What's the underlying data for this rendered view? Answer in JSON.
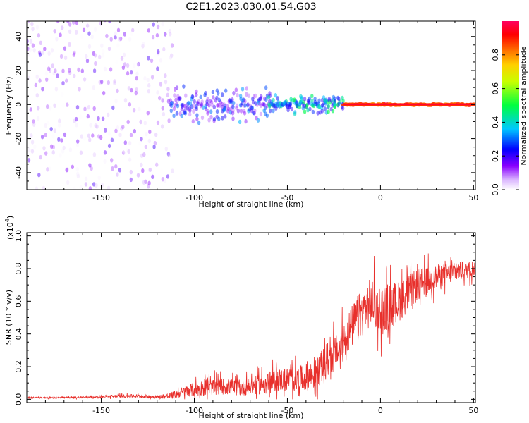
{
  "title": "C2E1.2023.030.01.54.G03",
  "colors": {
    "snr_line": "#e8302c",
    "frame": "#000000",
    "background": "#ffffff"
  },
  "chart_data": [
    {
      "type": "heatmap",
      "xlabel": "Height of straight line (km)",
      "ylabel": "Frequency (Hz)",
      "xlim": [
        -190,
        51
      ],
      "ylim": [
        -50,
        49
      ],
      "x_ticks": [
        -150,
        -100,
        -50,
        0,
        50
      ],
      "y_ticks": [
        -40,
        -20,
        0,
        20,
        40
      ],
      "colorbar": {
        "label": "Normalized spectral amplitude",
        "range": [
          0.0,
          1.0
        ],
        "ticks": [
          "0.0",
          "0.2",
          "0.4",
          "0.6",
          "0.8"
        ],
        "colormap": "rainbow (white-purple-blue-cyan-green-yellow-orange-red-pink)"
      },
      "description_regions": [
        {
          "x_range": [
            -190,
            -113
          ],
          "freq_spread": 50,
          "amplitude": [
            0.0,
            0.2
          ]
        },
        {
          "x_range": [
            -113,
            -60
          ],
          "freq_spread": 12,
          "amplitude": [
            0.1,
            0.35
          ]
        },
        {
          "x_range": [
            -60,
            -20
          ],
          "freq_spread": 6,
          "amplitude": [
            0.2,
            0.5
          ]
        },
        {
          "x_range": [
            -20,
            51
          ],
          "freq_spread": 1,
          "amplitude": [
            0.8,
            1.0
          ]
        }
      ]
    },
    {
      "type": "line",
      "xlabel": "Height of straight line (km)",
      "ylabel": "SNR (10 * v/v)",
      "y_multiplier": "(x10",
      "y_multiplier_exp": "4",
      "y_multiplier_close": ")",
      "xlim": [
        -190,
        51
      ],
      "ylim": [
        -0.02,
        1.02
      ],
      "x_ticks": [
        -150,
        -100,
        -50,
        0,
        50
      ],
      "y_ticks": [
        "0.0",
        "0.2",
        "0.4",
        "0.6",
        "0.8",
        "1.0"
      ],
      "series": [
        {
          "x": [
            -190,
            -170,
            -150,
            -140,
            -130,
            -120,
            -113,
            -105,
            -95,
            -85,
            -75,
            -65,
            -55,
            -45,
            -35,
            -28,
            -22,
            -18,
            -12,
            -5,
            0,
            10,
            20,
            30,
            40,
            50
          ],
          "y": [
            0.01,
            0.01,
            0.015,
            0.02,
            0.02,
            0.015,
            0.02,
            0.05,
            0.07,
            0.08,
            0.07,
            0.09,
            0.12,
            0.12,
            0.15,
            0.25,
            0.3,
            0.4,
            0.5,
            0.6,
            0.55,
            0.6,
            0.7,
            0.75,
            0.78,
            0.8
          ],
          "spread": [
            0.008,
            0.008,
            0.015,
            0.02,
            0.02,
            0.02,
            0.04,
            0.07,
            0.1,
            0.1,
            0.1,
            0.12,
            0.14,
            0.15,
            0.18,
            0.22,
            0.22,
            0.25,
            0.28,
            0.3,
            0.3,
            0.25,
            0.2,
            0.15,
            0.12,
            0.1
          ]
        }
      ]
    }
  ]
}
